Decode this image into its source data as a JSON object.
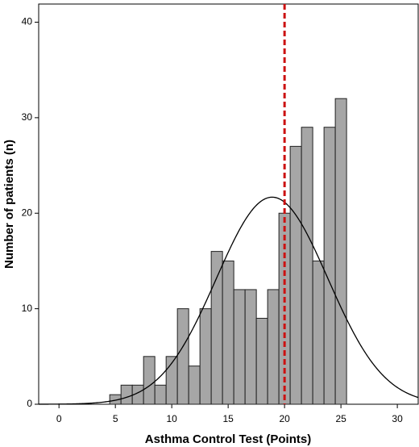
{
  "chart_data": {
    "type": "histogram",
    "xlabel": "Asthma Control Test (Points)",
    "ylabel": "Number of patients (n)",
    "bins": [
      4.5,
      5.5,
      6.5,
      7.5,
      8.5,
      9.5,
      10.5,
      11.5,
      12.5,
      13.5,
      14.5,
      15.5,
      16.5,
      17.5,
      18.5,
      19.5,
      20.5,
      21.5,
      22.5,
      23.5,
      24.5,
      25.5
    ],
    "values": [
      1,
      2,
      2,
      5,
      2,
      5,
      10,
      4,
      10,
      16,
      15,
      12,
      12,
      9,
      12,
      20,
      27,
      29,
      15,
      29,
      32
    ],
    "color": "#a6a6a6",
    "edge_color": "#222222",
    "normal_curve": {
      "mean": 18.9,
      "sd": 4.95,
      "color": "#000000"
    },
    "reference_line": {
      "x": 20,
      "color": "#cc1111",
      "style": "dashed"
    },
    "xlim": [
      -1.8,
      31.85
    ],
    "xticks": [
      0,
      5,
      10,
      15,
      20,
      25,
      30
    ],
    "ylim": [
      0,
      41.9
    ],
    "yticks": [
      0,
      10,
      20,
      30,
      40
    ]
  }
}
